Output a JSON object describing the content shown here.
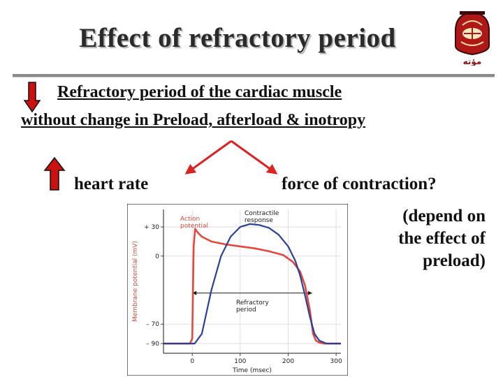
{
  "slide": {
    "title": "Effect of refractory period",
    "logo_text": "مؤته",
    "line1": "Refractory period of the cardiac muscle",
    "line2": "without change in Preload, afterload & inotropy",
    "heart_rate": "heart rate",
    "force": "force of contraction?",
    "depend": [
      "(depend on",
      "the effect of",
      "preload)"
    ]
  },
  "colors": {
    "arrow_red": "#cc1111",
    "arrow_outline": "#111111",
    "branch_red": "#dd2222",
    "action_potential": "#e5473c",
    "contractile_response": "#2a3f9a",
    "chart_text": "#d94a3a"
  },
  "icons": {
    "down_arrow": "red-down-arrow-icon",
    "up_arrow": "red-up-arrow-icon",
    "logo": "mutah-university-crest"
  },
  "chart_data": {
    "type": "line",
    "xlabel": "Time (msec)",
    "ylabel": "Membrane potential (mV)",
    "x_ticks": [
      "0",
      "100",
      "200",
      "300"
    ],
    "y_ticks": [
      "+ 30",
      "0",
      "– 70",
      "– 90"
    ],
    "xlim": [
      -60,
      310
    ],
    "ylim": [
      -100,
      48
    ],
    "annotations": {
      "action_potential": [
        "Action",
        "potential"
      ],
      "contractile_response": [
        "Contractile",
        "response"
      ],
      "refractory_period": [
        "Refractory",
        "period"
      ]
    },
    "refractory_period_ms": [
      0,
      250
    ],
    "series": [
      {
        "name": "Action potential",
        "x": [
          -60,
          -5,
          0,
          3,
          6,
          12,
          20,
          40,
          70,
          100,
          130,
          160,
          190,
          210,
          225,
          235,
          245,
          252,
          258,
          265,
          275,
          310
        ],
        "y": [
          -90,
          -90,
          -85,
          10,
          28,
          24,
          20,
          15,
          12,
          10,
          8,
          5,
          1,
          -6,
          -16,
          -30,
          -55,
          -80,
          -87,
          -89,
          -90,
          -90
        ]
      },
      {
        "name": "Contractile response",
        "x": [
          -60,
          5,
          20,
          40,
          60,
          80,
          100,
          120,
          140,
          160,
          180,
          200,
          215,
          225,
          235,
          245,
          255,
          265,
          280,
          310
        ],
        "y": [
          -90,
          -90,
          -80,
          -35,
          0,
          20,
          30,
          33,
          32,
          29,
          22,
          10,
          -5,
          -20,
          -40,
          -62,
          -80,
          -87,
          -90,
          -90
        ]
      }
    ]
  }
}
